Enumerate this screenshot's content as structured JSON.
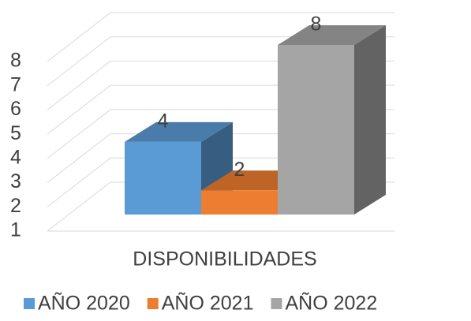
{
  "chart_data": {
    "type": "bar3d",
    "categories": [
      "DISPONIBILIDADES"
    ],
    "series": [
      {
        "name": "AÑO 2020",
        "color": "#5b9bd5",
        "values": [
          4
        ]
      },
      {
        "name": "AÑO 2021",
        "color": "#ed7d31",
        "values": [
          2
        ]
      },
      {
        "name": "AÑO 2022",
        "color": "#a5a5a5",
        "values": [
          8
        ]
      }
    ],
    "ylim": [
      1,
      8
    ],
    "yticks": [
      1,
      2,
      3,
      4,
      5,
      6,
      7,
      8
    ],
    "grid": true,
    "legend": "bottom"
  }
}
